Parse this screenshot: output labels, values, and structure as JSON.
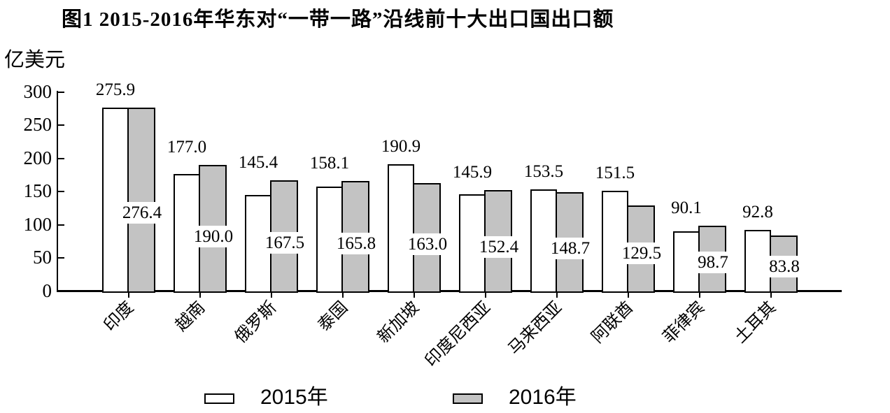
{
  "title": "图1 2015-2016年华东对“一带一路”沿线前十大出口国出口额",
  "chart_data": {
    "type": "bar",
    "title": "图1 2015-2016年华东对“一带一路”沿线前十大出口国出口额",
    "unit_label": "亿美元",
    "xlabel": "",
    "ylabel": "亿美元",
    "ylim": [
      0,
      300
    ],
    "yticks": [
      0,
      50,
      100,
      150,
      200,
      250,
      300
    ],
    "grid": false,
    "legend_position": "bottom",
    "categories": [
      "印度",
      "越南",
      "俄罗斯",
      "泰国",
      "新加坡",
      "印度尼西亚",
      "马来西亚",
      "阿联酋",
      "菲律宾",
      "土耳其"
    ],
    "series": [
      {
        "name": "2015年",
        "color": "#ffffff",
        "values": [
          275.9,
          177.0,
          145.4,
          158.1,
          190.9,
          145.9,
          153.5,
          151.5,
          90.1,
          92.8
        ],
        "labels": [
          "275.9",
          "177.0",
          "145.4",
          "158.1",
          "190.9",
          "145.9",
          "153.5",
          "151.5",
          "90.1",
          "92.8"
        ]
      },
      {
        "name": "2016年",
        "color": "#c3c3c3",
        "values": [
          276.4,
          190.0,
          167.5,
          165.8,
          163.0,
          152.4,
          148.7,
          129.5,
          98.7,
          83.8
        ],
        "labels": [
          "276.4",
          "190.0",
          "167.5",
          "165.8",
          "163.0",
          "152.4",
          "148.7",
          "129.5",
          "98.7",
          "83.8"
        ]
      }
    ]
  }
}
